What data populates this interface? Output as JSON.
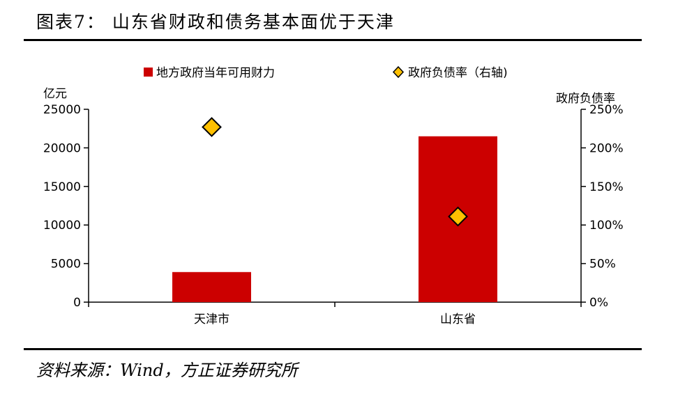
{
  "title": "图表7： 山东省财政和债务基本面优于天津",
  "source": "资料来源：Wind，方正证券研究所",
  "chart_data": {
    "type": "bar",
    "categories": [
      "天津市",
      "山东省"
    ],
    "series": [
      {
        "name": "地方政府当年可用财力",
        "axis": "left",
        "kind": "bar",
        "color": "#CC0000",
        "values": [
          3900,
          21500
        ]
      },
      {
        "name": "政府负债率（右轴)",
        "axis": "right",
        "kind": "marker",
        "marker": "diamond",
        "color": "#FFC000",
        "values": [
          2.27,
          1.11
        ]
      }
    ],
    "yleft": {
      "label": "亿元",
      "ylim": [
        0,
        25000
      ],
      "ticks": [
        0,
        5000,
        10000,
        15000,
        20000,
        25000
      ],
      "tick_labels": [
        "0",
        "5000",
        "10000",
        "15000",
        "20000",
        "25000"
      ]
    },
    "yright": {
      "label": "政府负债率",
      "ylim": [
        0,
        2.5
      ],
      "ticks": [
        0,
        0.5,
        1,
        1.5,
        2,
        2.5
      ],
      "tick_labels": [
        "0%",
        "50%",
        "100%",
        "150%",
        "200%",
        "250%"
      ]
    },
    "legend": "top",
    "grid": false
  }
}
